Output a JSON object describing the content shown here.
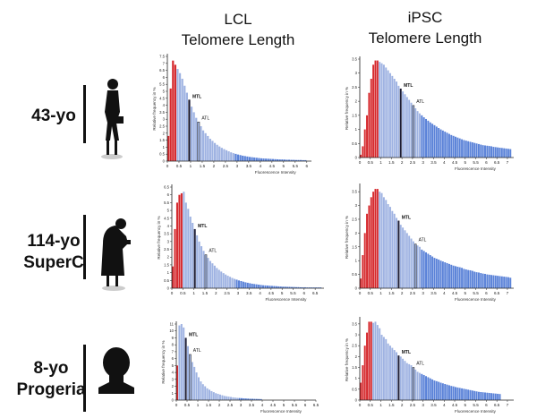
{
  "columns": [
    {
      "line1": "LCL",
      "line2": "Telomere Length"
    },
    {
      "line1": "iPSC",
      "line2": "Telomere Length"
    }
  ],
  "rows": [
    {
      "label1": "43-yo",
      "label2": ""
    },
    {
      "label1": "114-yo",
      "label2": "SuperC"
    },
    {
      "label1": "8-yo",
      "label2": "Progeria"
    }
  ],
  "colors": {
    "short": "#d62a2e",
    "mid": "#9fb3e2",
    "long": "#5a82d8",
    "marker": "#1b1b33"
  },
  "chart_data": [
    {
      "type": "bar",
      "name": "LCL 43-yo",
      "xlabel": "Fluorescence Intensity",
      "ylabel": "Relative frequency in %",
      "xlim": [
        0,
        6.2
      ],
      "ylim": [
        0,
        7.5
      ],
      "xtick_max": 6,
      "bin_start": 0.1,
      "bin_width": 0.1,
      "red_max": 0.45,
      "mid_max": 3,
      "mtl": 1.0,
      "atl": 1.4,
      "mtl_label": "MTL",
      "atl_label": "ATL",
      "values": [
        1.8,
        5.2,
        7.2,
        6.9,
        6.6,
        6.3,
        5.9,
        5.4,
        4.9,
        4.4,
        3.9,
        3.5,
        3.1,
        2.8,
        2.5,
        2.2,
        2.0,
        1.8,
        1.6,
        1.45,
        1.3,
        1.17,
        1.05,
        0.95,
        0.86,
        0.78,
        0.7,
        0.63,
        0.57,
        0.52,
        0.47,
        0.43,
        0.39,
        0.36,
        0.33,
        0.3,
        0.28,
        0.26,
        0.24,
        0.22,
        0.2,
        0.19,
        0.18,
        0.17,
        0.16,
        0.15,
        0.14,
        0.13,
        0.12,
        0.12,
        0.11,
        0.1,
        0.1,
        0.09,
        0.09,
        0.08,
        0.08,
        0.08,
        0.07,
        0.07
      ]
    },
    {
      "type": "bar",
      "name": "iPSC 43-yo",
      "xlabel": "Fluorescence Intensity",
      "ylabel": "Relative frequency in %",
      "xlim": [
        0,
        7.3
      ],
      "ylim": [
        0,
        3.5
      ],
      "xtick_max": 7,
      "bin_start": 0.1,
      "bin_width": 0.1,
      "red_max": 0.95,
      "mid_max": 3,
      "mtl": 2.0,
      "atl": 2.6,
      "mtl_label": "MTL",
      "atl_label": "ATL",
      "values": [
        0.1,
        0.4,
        1.0,
        1.5,
        2.3,
        2.8,
        3.3,
        3.45,
        3.45,
        3.4,
        3.35,
        3.3,
        3.2,
        3.1,
        3.0,
        2.9,
        2.8,
        2.7,
        2.55,
        2.45,
        2.35,
        2.25,
        2.15,
        2.05,
        1.95,
        1.85,
        1.75,
        1.65,
        1.57,
        1.5,
        1.43,
        1.37,
        1.31,
        1.25,
        1.2,
        1.15,
        1.1,
        1.05,
        1.0,
        0.96,
        0.92,
        0.88,
        0.84,
        0.8,
        0.77,
        0.74,
        0.71,
        0.68,
        0.65,
        0.62,
        0.6,
        0.58,
        0.56,
        0.54,
        0.52,
        0.5,
        0.48,
        0.46,
        0.44,
        0.43,
        0.42,
        0.41,
        0.4,
        0.38,
        0.37,
        0.36,
        0.35,
        0.34,
        0.33,
        0.32,
        0.31,
        0.3
      ]
    },
    {
      "type": "bar",
      "name": "LCL 114-yo SuperC",
      "xlabel": "Fluorescence Intensity",
      "ylabel": "Relative frequency in %",
      "xlim": [
        0,
        6.9
      ],
      "ylim": [
        0,
        6.5
      ],
      "xtick_max": 6.5,
      "bin_start": 0.1,
      "bin_width": 0.1,
      "red_max": 0.55,
      "mid_max": 3,
      "mtl": 1.1,
      "atl": 1.6,
      "mtl_label": "MTL",
      "atl_label": "ATL",
      "values": [
        1.4,
        3.8,
        5.5,
        6.0,
        6.1,
        6.2,
        5.5,
        5.1,
        4.6,
        4.2,
        3.8,
        3.4,
        3.0,
        2.7,
        2.4,
        2.15,
        1.95,
        1.75,
        1.6,
        1.45,
        1.3,
        1.18,
        1.07,
        0.97,
        0.88,
        0.8,
        0.73,
        0.66,
        0.6,
        0.55,
        0.5,
        0.46,
        0.42,
        0.38,
        0.35,
        0.32,
        0.29,
        0.27,
        0.25,
        0.23,
        0.21,
        0.19,
        0.18,
        0.17,
        0.16,
        0.15,
        0.14,
        0.13,
        0.12,
        0.11,
        0.1,
        0.1,
        0.09,
        0.09,
        0.08,
        0.08,
        0.07,
        0.07,
        0.06,
        0.06,
        0.06,
        0.05,
        0.05,
        0.05,
        0.05,
        0.05,
        0.05,
        0.05
      ]
    },
    {
      "type": "bar",
      "name": "iPSC 114-yo SuperC",
      "xlabel": "Fluorescence Intensity",
      "ylabel": "Relative frequency in %",
      "xlim": [
        0,
        7.3
      ],
      "ylim": [
        0,
        3.7
      ],
      "xtick_max": 7,
      "bin_start": 0.1,
      "bin_width": 0.1,
      "red_max": 0.95,
      "mid_max": 3,
      "mtl": 1.9,
      "atl": 2.7,
      "mtl_label": "MTL",
      "atl_label": "ATL",
      "values": [
        0.35,
        1.2,
        2.0,
        2.7,
        3.0,
        3.3,
        3.5,
        3.6,
        3.6,
        3.5,
        3.45,
        3.3,
        3.2,
        3.05,
        2.95,
        2.8,
        2.7,
        2.55,
        2.45,
        2.3,
        2.2,
        2.1,
        2.0,
        1.9,
        1.8,
        1.7,
        1.6,
        1.55,
        1.5,
        1.4,
        1.35,
        1.3,
        1.25,
        1.2,
        1.15,
        1.1,
        1.07,
        1.04,
        1.0,
        0.97,
        0.94,
        0.91,
        0.88,
        0.85,
        0.82,
        0.8,
        0.78,
        0.76,
        0.74,
        0.7,
        0.68,
        0.66,
        0.65,
        0.63,
        0.6,
        0.58,
        0.57,
        0.55,
        0.53,
        0.52,
        0.5,
        0.49,
        0.48,
        0.47,
        0.46,
        0.45,
        0.44,
        0.43,
        0.42,
        0.41,
        0.4,
        0.38
      ]
    },
    {
      "type": "bar",
      "name": "LCL 8-yo Progeria",
      "xlabel": "Fluorescence Intensity",
      "ylabel": "Relative frequency in %",
      "xlim": [
        0,
        6.5
      ],
      "ylim": [
        0,
        11
      ],
      "xtick_max": 6.5,
      "bin_start": 0.1,
      "bin_width": 0.1,
      "red_max": 0.15,
      "mid_max": 3,
      "mtl": 0.5,
      "atl": 0.7,
      "mtl_label": "MTL",
      "atl_label": "ATL",
      "values": [
        5.0,
        10.8,
        11.0,
        10.5,
        9.0,
        7.8,
        6.6,
        5.5,
        4.8,
        4.0,
        3.3,
        2.7,
        2.3,
        2.0,
        1.7,
        1.5,
        1.3,
        1.15,
        1.0,
        0.9,
        0.8,
        0.7,
        0.6,
        0.55,
        0.5,
        0.45,
        0.4,
        0.36,
        0.32,
        0.3,
        0.28,
        0.26,
        0.24,
        0.22,
        0.2,
        0.19,
        0.18,
        0.17,
        0.16,
        0.15
      ]
    },
    {
      "type": "bar",
      "name": "iPSC 8-yo Progeria",
      "xlabel": "Fluorescence Intensity",
      "ylabel": "Relative frequency in %",
      "xlim": [
        0,
        7.3
      ],
      "ylim": [
        0,
        3.7
      ],
      "xtick_max": 7,
      "bin_start": 0.1,
      "bin_width": 0.1,
      "red_max": 0.65,
      "mid_max": 3,
      "mtl": 1.9,
      "atl": 2.6,
      "mtl_label": "MTL",
      "atl_label": "ATL",
      "values": [
        0.8,
        1.6,
        2.5,
        3.1,
        3.6,
        3.6,
        3.55,
        3.6,
        3.45,
        3.3,
        3.0,
        2.9,
        2.8,
        2.6,
        2.5,
        2.4,
        2.3,
        2.2,
        2.05,
        2.0,
        1.9,
        1.8,
        1.7,
        1.65,
        1.6,
        1.5,
        1.4,
        1.3,
        1.25,
        1.2,
        1.15,
        1.1,
        1.05,
        1.0,
        0.95,
        0.9,
        0.87,
        0.84,
        0.8,
        0.77,
        0.74,
        0.71,
        0.68,
        0.65,
        0.63,
        0.6,
        0.58,
        0.56,
        0.54,
        0.52,
        0.5,
        0.48,
        0.46,
        0.44,
        0.42,
        0.4,
        0.38,
        0.37,
        0.36,
        0.35,
        0.34,
        0.33,
        0.32,
        0.31,
        0.3,
        0.29,
        0.28
      ]
    }
  ]
}
